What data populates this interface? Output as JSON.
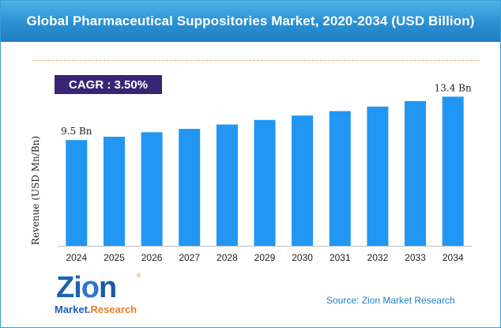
{
  "title": "Global Pharmaceutical Suppositories Market, 2020-2034 (USD Billion)",
  "cagr": "CAGR : 3.50%",
  "source": "Source: Zion Market Research",
  "logo": {
    "word_prefix": "Zi",
    "word_o": "o",
    "word_suffix": "n",
    "tag_market": "Market.",
    "tag_research": "Research",
    "reg": "®"
  },
  "colors": {
    "bar": "#2196f3",
    "title_bg": "#2a8fd1",
    "cagr_bg": "#3b2473",
    "dashed_line": "#f0a264"
  },
  "chart_data": {
    "type": "bar",
    "title": "Global Pharmaceutical Suppositories Market, 2020-2034 (USD Billion)",
    "ylabel": "Revenue (USD Mn/Bn)",
    "xlabel": "",
    "categories": [
      "2024",
      "2025",
      "2026",
      "2027",
      "2028",
      "2029",
      "2030",
      "2031",
      "2032",
      "2033",
      "2034"
    ],
    "values": [
      9.5,
      9.8,
      10.2,
      10.5,
      10.9,
      11.3,
      11.7,
      12.1,
      12.5,
      13.0,
      13.4
    ],
    "data_labels": [
      {
        "index": 0,
        "text": "9.5 Bn"
      },
      {
        "index": 10,
        "text": "13.4 Bn"
      }
    ],
    "ylim": [
      0,
      14.2
    ],
    "grid": false,
    "legend": "none"
  }
}
